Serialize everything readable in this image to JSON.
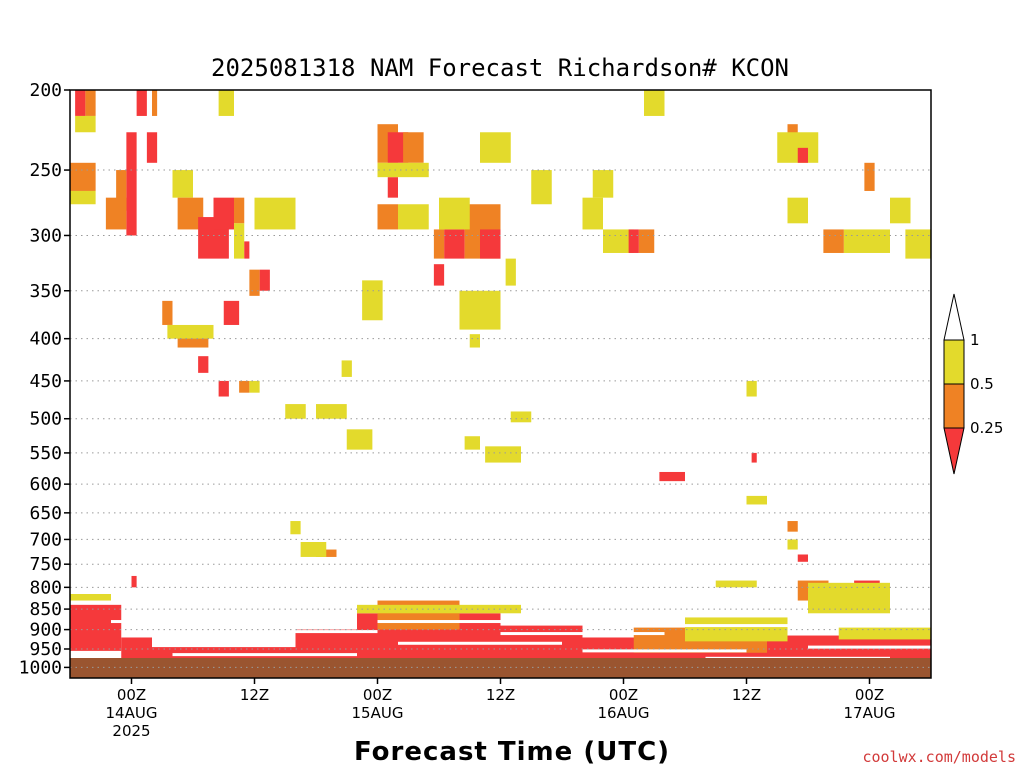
{
  "chart_data": {
    "type": "heatmap",
    "title": "2025081318 NAM Forecast Richardson# KCON",
    "xlabel": "Forecast Time (UTC)",
    "credit": "coolwx.com/models",
    "y_ticks": [
      "200",
      "250",
      "300",
      "350",
      "400",
      "450",
      "500",
      "550",
      "600",
      "650",
      "700",
      "750",
      "800",
      "850",
      "900",
      "950",
      "1000"
    ],
    "y_scale": "log-pressure",
    "ylim": [
      1030,
      200
    ],
    "x_ticks": [
      {
        "hour": 6,
        "lines": [
          "00Z",
          "14AUG",
          "2025"
        ]
      },
      {
        "hour": 18,
        "lines": [
          "12Z"
        ]
      },
      {
        "hour": 30,
        "lines": [
          "00Z",
          "15AUG"
        ]
      },
      {
        "hour": 42,
        "lines": [
          "12Z"
        ]
      },
      {
        "hour": 54,
        "lines": [
          "00Z",
          "16AUG"
        ]
      },
      {
        "hour": 66,
        "lines": [
          "12Z"
        ]
      },
      {
        "hour": 78,
        "lines": [
          "00Z",
          "17AUG"
        ]
      }
    ],
    "xlim": [
      0,
      84
    ],
    "grid": true,
    "ground_color": "#9a5530",
    "legend": {
      "placement": "right",
      "levels": [
        "1",
        "0.5",
        "0.25"
      ],
      "colors": {
        "below_025": "#f5393b",
        "025_05": "#ef8224",
        "05_1": "#e3da2c",
        "above_1": "#ffffff"
      }
    },
    "cells": [
      {
        "h0": 0.5,
        "h1": 1.5,
        "p0": 200,
        "p1": 215,
        "c": "r"
      },
      {
        "h0": 1.5,
        "h1": 2.5,
        "p0": 200,
        "p1": 215,
        "c": "o"
      },
      {
        "h0": 0.5,
        "h1": 2.5,
        "p0": 215,
        "p1": 225,
        "c": "y"
      },
      {
        "h0": 6.5,
        "h1": 7.5,
        "p0": 200,
        "p1": 215,
        "c": "r"
      },
      {
        "h0": 8,
        "h1": 8.5,
        "p0": 200,
        "p1": 215,
        "c": "o"
      },
      {
        "h0": 14.5,
        "h1": 16,
        "p0": 200,
        "p1": 215,
        "c": "y"
      },
      {
        "h0": 5.5,
        "h1": 6.5,
        "p0": 225,
        "p1": 300,
        "c": "r"
      },
      {
        "h0": 4.5,
        "h1": 5.5,
        "p0": 250,
        "p1": 280,
        "c": "o"
      },
      {
        "h0": 0,
        "h1": 2.5,
        "p0": 245,
        "p1": 265,
        "c": "o"
      },
      {
        "h0": 0,
        "h1": 2.5,
        "p0": 265,
        "p1": 275,
        "c": "y"
      },
      {
        "h0": 3.5,
        "h1": 5.5,
        "p0": 270,
        "p1": 295,
        "c": "o"
      },
      {
        "h0": 7.5,
        "h1": 8.5,
        "p0": 225,
        "p1": 245,
        "c": "r"
      },
      {
        "h0": 10,
        "h1": 12,
        "p0": 250,
        "p1": 270,
        "c": "y"
      },
      {
        "h0": 10.5,
        "h1": 13,
        "p0": 270,
        "p1": 295,
        "c": "o"
      },
      {
        "h0": 12.5,
        "h1": 15.5,
        "p0": 285,
        "p1": 320,
        "c": "r"
      },
      {
        "h0": 14,
        "h1": 16,
        "p0": 270,
        "p1": 295,
        "c": "r"
      },
      {
        "h0": 16,
        "h1": 17,
        "p0": 270,
        "p1": 290,
        "c": "o"
      },
      {
        "h0": 16,
        "h1": 17,
        "p0": 290,
        "p1": 320,
        "c": "y"
      },
      {
        "h0": 17,
        "h1": 17.5,
        "p0": 305,
        "p1": 320,
        "c": "r"
      },
      {
        "h0": 18,
        "h1": 22,
        "p0": 270,
        "p1": 295,
        "c": "y"
      },
      {
        "h0": 18.5,
        "h1": 19.5,
        "p0": 330,
        "p1": 350,
        "c": "r"
      },
      {
        "h0": 17.5,
        "h1": 18.5,
        "p0": 330,
        "p1": 355,
        "c": "o"
      },
      {
        "h0": 15,
        "h1": 16.5,
        "p0": 360,
        "p1": 385,
        "c": "r"
      },
      {
        "h0": 9,
        "h1": 10,
        "p0": 360,
        "p1": 385,
        "c": "o"
      },
      {
        "h0": 10.5,
        "h1": 13.5,
        "p0": 390,
        "p1": 410,
        "c": "o"
      },
      {
        "h0": 9.5,
        "h1": 14,
        "p0": 385,
        "p1": 400,
        "c": "y"
      },
      {
        "h0": 12.5,
        "h1": 13.5,
        "p0": 420,
        "p1": 440,
        "c": "r"
      },
      {
        "h0": 14.5,
        "h1": 15.5,
        "p0": 450,
        "p1": 470,
        "c": "r"
      },
      {
        "h0": 16.5,
        "h1": 17.5,
        "p0": 450,
        "p1": 465,
        "c": "o"
      },
      {
        "h0": 17.5,
        "h1": 18.5,
        "p0": 450,
        "p1": 465,
        "c": "y"
      },
      {
        "h0": 21,
        "h1": 23,
        "p0": 480,
        "p1": 500,
        "c": "y"
      },
      {
        "h0": 24,
        "h1": 27,
        "p0": 480,
        "p1": 500,
        "c": "y"
      },
      {
        "h0": 27.5,
        "h1": 28.5,
        "p0": 520,
        "p1": 540,
        "c": "o"
      },
      {
        "h0": 27,
        "h1": 29.5,
        "p0": 515,
        "p1": 545,
        "c": "y"
      },
      {
        "h0": 26.5,
        "h1": 27.5,
        "p0": 425,
        "p1": 445,
        "c": "y"
      },
      {
        "h0": 29,
        "h1": 30,
        "p0": 345,
        "p1": 365,
        "c": "r"
      },
      {
        "h0": 28.5,
        "h1": 30.5,
        "p0": 340,
        "p1": 380,
        "c": "y"
      },
      {
        "h0": 30,
        "h1": 32,
        "p0": 220,
        "p1": 245,
        "c": "o"
      },
      {
        "h0": 31,
        "h1": 33,
        "p0": 225,
        "p1": 245,
        "c": "r"
      },
      {
        "h0": 31,
        "h1": 32,
        "p0": 255,
        "p1": 270,
        "c": "r"
      },
      {
        "h0": 32.5,
        "h1": 34.5,
        "p0": 225,
        "p1": 245,
        "c": "o"
      },
      {
        "h0": 30,
        "h1": 35,
        "p0": 245,
        "p1": 255,
        "c": "y"
      },
      {
        "h0": 30,
        "h1": 32,
        "p0": 275,
        "p1": 295,
        "c": "o"
      },
      {
        "h0": 32,
        "h1": 35,
        "p0": 275,
        "p1": 295,
        "c": "y"
      },
      {
        "h0": 36.5,
        "h1": 38.5,
        "p0": 295,
        "p1": 320,
        "c": "r"
      },
      {
        "h0": 35.5,
        "h1": 36.5,
        "p0": 295,
        "p1": 320,
        "c": "o"
      },
      {
        "h0": 38.5,
        "h1": 42,
        "p0": 275,
        "p1": 320,
        "c": "o"
      },
      {
        "h0": 40,
        "h1": 42,
        "p0": 295,
        "p1": 320,
        "c": "r"
      },
      {
        "h0": 36,
        "h1": 39,
        "p0": 270,
        "p1": 295,
        "c": "y"
      },
      {
        "h0": 40,
        "h1": 43,
        "p0": 225,
        "p1": 245,
        "c": "y"
      },
      {
        "h0": 42.5,
        "h1": 43.5,
        "p0": 320,
        "p1": 345,
        "c": "y"
      },
      {
        "h0": 35.5,
        "h1": 36.5,
        "p0": 325,
        "p1": 345,
        "c": "r"
      },
      {
        "h0": 38.5,
        "h1": 41,
        "p0": 360,
        "p1": 385,
        "c": "o"
      },
      {
        "h0": 38,
        "h1": 42,
        "p0": 350,
        "p1": 390,
        "c": "y"
      },
      {
        "h0": 39,
        "h1": 40,
        "p0": 395,
        "p1": 410,
        "c": "y"
      },
      {
        "h0": 43,
        "h1": 45,
        "p0": 490,
        "p1": 505,
        "c": "y"
      },
      {
        "h0": 38.5,
        "h1": 40,
        "p0": 525,
        "p1": 545,
        "c": "y"
      },
      {
        "h0": 40.5,
        "h1": 44,
        "p0": 540,
        "p1": 565,
        "c": "y"
      },
      {
        "h0": 45,
        "h1": 47,
        "p0": 250,
        "p1": 275,
        "c": "y"
      },
      {
        "h0": 50,
        "h1": 52,
        "p0": 270,
        "p1": 295,
        "c": "y"
      },
      {
        "h0": 51,
        "h1": 53,
        "p0": 250,
        "p1": 270,
        "c": "y"
      },
      {
        "h0": 52,
        "h1": 55,
        "p0": 295,
        "p1": 315,
        "c": "y"
      },
      {
        "h0": 54.5,
        "h1": 55.5,
        "p0": 295,
        "p1": 315,
        "c": "r"
      },
      {
        "h0": 55.5,
        "h1": 57,
        "p0": 295,
        "p1": 315,
        "c": "o"
      },
      {
        "h0": 56,
        "h1": 58,
        "p0": 200,
        "p1": 215,
        "c": "y"
      },
      {
        "h0": 57.5,
        "h1": 60,
        "p0": 580,
        "p1": 595,
        "c": "r"
      },
      {
        "h0": 66,
        "h1": 68,
        "p0": 620,
        "p1": 635,
        "c": "y"
      },
      {
        "h0": 66.5,
        "h1": 67,
        "p0": 550,
        "p1": 565,
        "c": "r"
      },
      {
        "h0": 66,
        "h1": 67,
        "p0": 450,
        "p1": 470,
        "c": "y"
      },
      {
        "h0": 70,
        "h1": 71,
        "p0": 220,
        "p1": 230,
        "c": "o"
      },
      {
        "h0": 69,
        "h1": 73,
        "p0": 225,
        "p1": 245,
        "c": "y"
      },
      {
        "h0": 71,
        "h1": 72,
        "p0": 235,
        "p1": 245,
        "c": "r"
      },
      {
        "h0": 70,
        "h1": 72,
        "p0": 270,
        "p1": 290,
        "c": "y"
      },
      {
        "h0": 73.5,
        "h1": 75.5,
        "p0": 295,
        "p1": 315,
        "c": "o"
      },
      {
        "h0": 75.5,
        "h1": 80,
        "p0": 295,
        "p1": 315,
        "c": "y"
      },
      {
        "h0": 77.5,
        "h1": 78.5,
        "p0": 245,
        "p1": 265,
        "c": "o"
      },
      {
        "h0": 80,
        "h1": 82,
        "p0": 270,
        "p1": 290,
        "c": "y"
      },
      {
        "h0": 81.5,
        "h1": 84,
        "p0": 295,
        "p1": 320,
        "c": "y"
      },
      {
        "h0": 21.5,
        "h1": 22.5,
        "p0": 665,
        "p1": 690,
        "c": "y"
      },
      {
        "h0": 24,
        "h1": 26,
        "p0": 720,
        "p1": 735,
        "c": "o"
      },
      {
        "h0": 22.5,
        "h1": 25,
        "p0": 705,
        "p1": 735,
        "c": "y"
      },
      {
        "h0": 70,
        "h1": 71,
        "p0": 665,
        "p1": 685,
        "c": "o"
      },
      {
        "h0": 71,
        "h1": 72,
        "p0": 730,
        "p1": 745,
        "c": "r"
      },
      {
        "h0": 70,
        "h1": 71,
        "p0": 700,
        "p1": 720,
        "c": "y"
      },
      {
        "h0": 63,
        "h1": 67,
        "p0": 785,
        "p1": 800,
        "c": "y"
      },
      {
        "h0": 76.5,
        "h1": 79,
        "p0": 785,
        "p1": 810,
        "c": "r"
      },
      {
        "h0": 74,
        "h1": 79,
        "p0": 810,
        "p1": 850,
        "c": "o"
      },
      {
        "h0": 71,
        "h1": 74,
        "p0": 785,
        "p1": 830,
        "c": "o"
      },
      {
        "h0": 72,
        "h1": 80,
        "p0": 790,
        "p1": 860,
        "c": "y"
      },
      {
        "h0": 6,
        "h1": 6.5,
        "p0": 775,
        "p1": 800,
        "c": "r"
      },
      {
        "h0": 0,
        "h1": 4,
        "p0": 815,
        "p1": 830,
        "c": "y"
      },
      {
        "h0": 0,
        "h1": 5,
        "p0": 840,
        "p1": 955,
        "c": "r"
      },
      {
        "h0": 5,
        "h1": 8,
        "p0": 920,
        "p1": 990,
        "c": "r"
      },
      {
        "h0": 8,
        "h1": 22,
        "p0": 945,
        "p1": 1000,
        "c": "r"
      },
      {
        "h0": 22,
        "h1": 28,
        "p0": 900,
        "p1": 1000,
        "c": "r"
      },
      {
        "h0": 28,
        "h1": 42,
        "p0": 860,
        "p1": 1000,
        "c": "r"
      },
      {
        "h0": 30,
        "h1": 38,
        "p0": 830,
        "p1": 900,
        "c": "o"
      },
      {
        "h0": 28,
        "h1": 44,
        "p0": 840,
        "p1": 860,
        "c": "y"
      },
      {
        "h0": 42,
        "h1": 50,
        "p0": 890,
        "p1": 990,
        "c": "r"
      },
      {
        "h0": 50,
        "h1": 70,
        "p0": 920,
        "p1": 1000,
        "c": "r"
      },
      {
        "h0": 55,
        "h1": 68,
        "p0": 895,
        "p1": 960,
        "c": "o"
      },
      {
        "h0": 60,
        "h1": 70,
        "p0": 870,
        "p1": 930,
        "c": "y"
      },
      {
        "h0": 70,
        "h1": 84,
        "p0": 915,
        "p1": 1000,
        "c": "r"
      },
      {
        "h0": 75,
        "h1": 84,
        "p0": 895,
        "p1": 925,
        "c": "y"
      }
    ],
    "white_streaks": [
      {
        "h0": 4,
        "h1": 12,
        "p": 880
      },
      {
        "h0": 22,
        "h1": 30,
        "p": 905
      },
      {
        "h0": 30,
        "h1": 42,
        "p": 880
      },
      {
        "h0": 32,
        "h1": 48,
        "p": 935
      },
      {
        "h0": 42,
        "h1": 58,
        "p": 910
      },
      {
        "h0": 50,
        "h1": 66,
        "p": 955
      },
      {
        "h0": 60,
        "h1": 74,
        "p": 890
      },
      {
        "h0": 72,
        "h1": 84,
        "p": 945
      },
      {
        "h0": 10,
        "h1": 28,
        "p": 965
      },
      {
        "h0": 62,
        "h1": 80,
        "p": 975
      }
    ]
  }
}
